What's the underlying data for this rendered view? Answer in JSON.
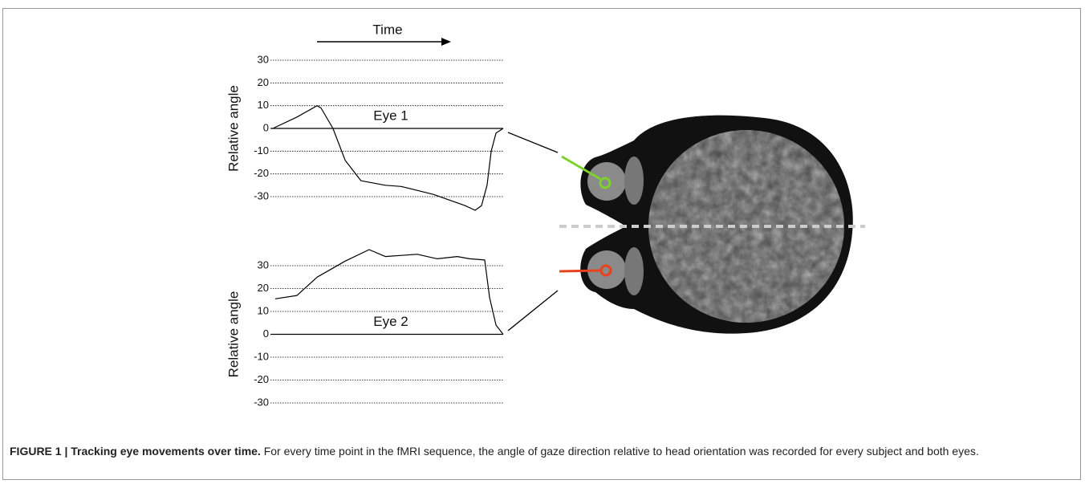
{
  "time_label": "Time",
  "chart_data": [
    {
      "type": "line",
      "ylabel": "Relative angle",
      "annotation": "Eye 1",
      "xlim": [
        0,
        100
      ],
      "ylim": [
        -30,
        30
      ],
      "yticks": [
        30,
        20,
        10,
        0,
        -10,
        -20,
        -30
      ],
      "x": [
        0,
        10.5,
        19.2,
        20.9,
        26.1,
        31.4,
        38.3,
        48.8,
        55.7,
        69.7,
        83.6,
        87.8,
        90.6,
        93,
        94.8,
        96.9,
        100
      ],
      "series": [
        {
          "color": "#000000",
          "values": [
            0,
            5,
            10,
            9,
            0,
            -14,
            -23,
            -25,
            -25.5,
            -29,
            -34,
            -36,
            -34,
            -25,
            -10,
            -2,
            0
          ]
        }
      ]
    },
    {
      "type": "line",
      "ylabel": "Relative angle",
      "annotation": "Eye 2",
      "xlim": [
        0,
        100
      ],
      "ylim": [
        -30,
        30
      ],
      "yticks": [
        30,
        20,
        10,
        0,
        -10,
        -20,
        -30
      ],
      "x": [
        1,
        10.5,
        19.2,
        31.4,
        41.8,
        48.8,
        62.7,
        71.4,
        80.1,
        85.4,
        92,
        94.1,
        96.9,
        100
      ],
      "series": [
        {
          "color": "#000000",
          "values": [
            15.5,
            17,
            25,
            32,
            37,
            34,
            35,
            33,
            34,
            33,
            32.5,
            16,
            4,
            0
          ]
        }
      ]
    }
  ],
  "caption": {
    "label": "FIGURE 1 | Tracking eye movements over time.",
    "text": "For every time point in the fMRI sequence, the angle of gaze direction relative to head orientation was recorded for every subject and both eyes."
  }
}
